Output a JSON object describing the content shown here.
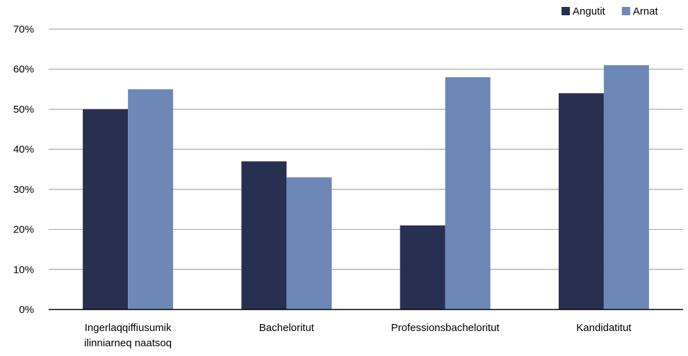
{
  "chart_data": {
    "type": "bar",
    "categories": [
      [
        "Ingerlaqqiffiusumik",
        "ilinniarneq naatsoq"
      ],
      [
        "Bacheloritut"
      ],
      [
        "Professionsbacheloritut"
      ],
      [
        "Kandidatitut"
      ]
    ],
    "series": [
      {
        "name": "Angutit",
        "color": "#283052",
        "values": [
          50,
          37,
          21,
          54
        ]
      },
      {
        "name": "Arnat",
        "color": "#6d88b7",
        "values": [
          55,
          33,
          58,
          61
        ]
      }
    ],
    "ylim": [
      0,
      70
    ],
    "yticks": [
      0,
      10,
      20,
      30,
      40,
      50,
      60,
      70
    ],
    "ytick_suffix": "%",
    "grid": true,
    "legend": "top-right"
  }
}
